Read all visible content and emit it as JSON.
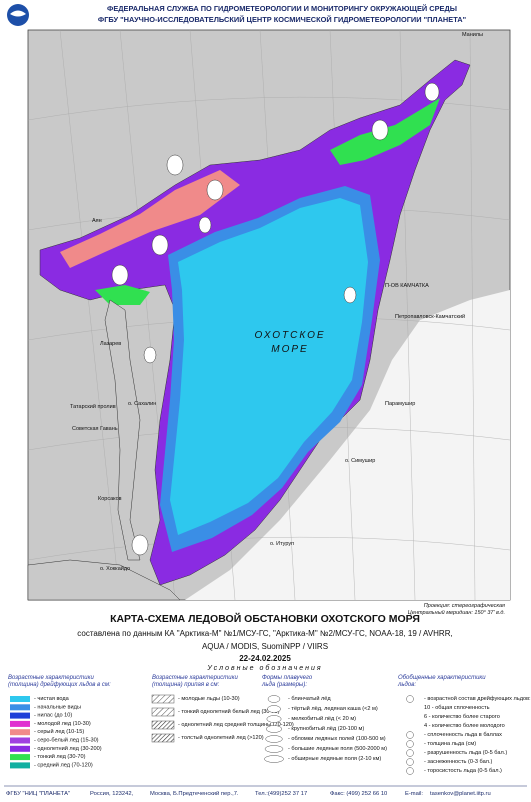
{
  "header": {
    "agency": "ФЕДЕРАЛЬНАЯ СЛУЖБА ПО ГИДРОМЕТЕОРОЛОГИИ И МОНИТОРИНГУ ОКРУЖАЮЩЕЙ СРЕДЫ",
    "center": "ФГБУ \"НАУЧНО-ИССЛЕДОВАТЕЛЬСКИЙ ЦЕНТР КОСМИЧЕСКОЙ ГИДРОМЕТЕОРОЛОГИИ \"ПЛАНЕТА\""
  },
  "map": {
    "sea_name": [
      "ОХОТСКОЕ",
      "МОРЕ"
    ],
    "places": [
      "Манилы",
      "Аян",
      "П-ОВ КАМЧАТКА",
      "Петропавловск-Камчатский",
      "Парамушир",
      "о. Симушир",
      "о. Итуруп",
      "о. Сахалин",
      "Татарский пролив",
      "Советская Гавань",
      "Лазарев",
      "Корсаков",
      "о. Хоккайдо"
    ],
    "projection": [
      "Проекция: стереографическая",
      "Центральный меридиан: 150° 37' в.д."
    ]
  },
  "title": {
    "main": "КАРТА-СХЕМА ЛЕДОВОЙ ОБСТАНОВКИ ОХОТСКОГО МОРЯ",
    "source": [
      "составлена по данным КА \"Арктика-М\" №1/МСУ-ГС, \"Арктика-М\" №2/МСУ-ГС, NOAA-18, 19 / AVHRR,",
      "AQUA / MODIS, SuomiNPP / VIIRS"
    ],
    "date": "22-24.02.2025"
  },
  "legend": {
    "title": "Условные обозначения",
    "drift": {
      "heading": [
        "Возрастные характеристики",
        "(толщина) дрейфующих льдов в см:"
      ],
      "items": [
        {
          "label": "- чистая вода",
          "color": "#2ec8ee"
        },
        {
          "label": "- начальные виды",
          "color": "#3a8ee6"
        },
        {
          "label": "- нилас (до 10)",
          "color": "#2040d8"
        },
        {
          "label": "- молодой лед (10-30)",
          "color": "#e030d0"
        },
        {
          "label": "- серый лед (10-15)",
          "color": "#f08a8a"
        },
        {
          "label": "- серо-белый лед (15-30)",
          "color": "#a040e0"
        },
        {
          "label": "- однолетний лед (30-200)",
          "color": "#8a2be2"
        },
        {
          "label": "- тонкий лед (30-70)",
          "color": "#30e050"
        },
        {
          "label": "- средний лед (70-120)",
          "color": "#10b0a0"
        }
      ]
    },
    "fast": {
      "heading": [
        "Возрастные характеристики",
        "(толщина) припая в см:"
      ],
      "items": [
        "- молодые льды (10-30)",
        "- тонкий однолетний белый лед (30-70)",
        "- однолетний лед средней толщины (70-120)",
        "- толстый однолетний лед (>120)"
      ]
    },
    "forms": {
      "heading": [
        "Формы плавучего",
        "льда (размеры):"
      ],
      "items": [
        "- блинчатый лёд",
        "- тёртый лёд, ледяная каша (<2 м)",
        "- мелкобитый лёд (< 20 м)",
        "- крупнобитый лёд (20-100 м)",
        "- обломки ледяных полей (100-500 м)",
        "- большие ледяные поля (500-2000 м)",
        "- обширные ледяные поля (2-10 км)"
      ]
    },
    "general": {
      "heading": [
        "Обобщенные характеристики",
        "льдов:"
      ],
      "items": [
        "- возрастной состав дрейфующих льдов:",
        "10 - общая сплоченность",
        "6 - количество более старого",
        "4 - количество более молодого",
        "- сплоченность льда в баллах",
        "- толщина льда (см)",
        "- разрушенность льда (0-5 бал.)",
        "- заснеженность (0-3 бал.)",
        "- торосистость льда (0-5 бал.)"
      ]
    }
  },
  "footer": [
    "ФГБУ \"НИЦ \"ПЛАНЕТА\"",
    "Россия, 123242,",
    "Москва, Б.Предтеченский пер.,7.",
    "Тел.:(499)252 37 17",
    "Факс: (499) 252 66 10",
    "E-mail:",
    "tasenkov@planet.iitp.ru"
  ]
}
